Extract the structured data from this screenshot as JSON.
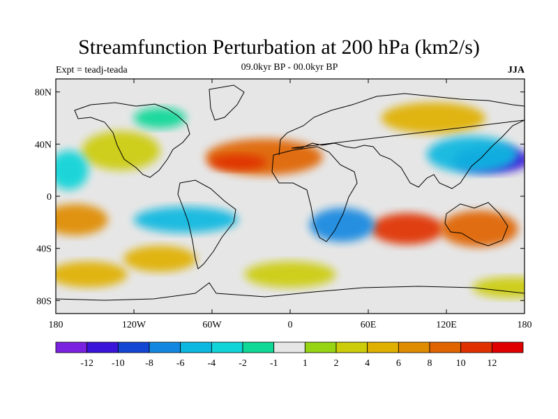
{
  "title": "Streamfunction Perturbation at 200 hPa (km2/s)",
  "left_label": "Expt = teadj-teada",
  "center_label": "09.0kyr BP - 00.0kyr BP",
  "right_label": "JJA",
  "map": {
    "lon_ticks": [
      "180",
      "120W",
      "60W",
      "0",
      "60E",
      "120E",
      "180"
    ],
    "lat_ticks": [
      "80N",
      "40N",
      "0",
      "40S",
      "80S"
    ],
    "lon_values": [
      -180,
      -120,
      -60,
      0,
      60,
      120,
      180
    ],
    "lat_values": [
      80,
      40,
      0,
      -40,
      -80
    ]
  },
  "colorbar": {
    "colors": [
      "#7a22e0",
      "#3a14d8",
      "#1446d4",
      "#1488e0",
      "#0cb8e0",
      "#10d4d8",
      "#10d896",
      "#e6e6e6",
      "#96d414",
      "#cccc0a",
      "#e0b000",
      "#e08c00",
      "#e06400",
      "#e03000",
      "#e00000"
    ],
    "labels": [
      "-12",
      "-10",
      "-8",
      "-6",
      "-4",
      "-2",
      "-1",
      "1",
      "2",
      "4",
      "6",
      "8",
      "10",
      "12"
    ]
  },
  "field_blobs": [
    {
      "lon": -20,
      "lat": 30,
      "rx": 45,
      "ry": 14,
      "level": 12
    },
    {
      "lon": -40,
      "lat": 26,
      "rx": 22,
      "ry": 6,
      "level": 13
    },
    {
      "lon": -130,
      "lat": 35,
      "rx": 30,
      "ry": 15,
      "level": 9
    },
    {
      "lon": -165,
      "lat": -18,
      "rx": 25,
      "ry": 12,
      "level": 11
    },
    {
      "lon": -100,
      "lat": -48,
      "rx": 28,
      "ry": 10,
      "level": 10
    },
    {
      "lon": 90,
      "lat": -25,
      "rx": 28,
      "ry": 12,
      "level": 13
    },
    {
      "lon": 145,
      "lat": -25,
      "rx": 30,
      "ry": 14,
      "level": 12
    },
    {
      "lon": 110,
      "lat": 60,
      "rx": 40,
      "ry": 12,
      "level": 10
    },
    {
      "lon": 155,
      "lat": 28,
      "rx": 30,
      "ry": 10,
      "level": 1
    },
    {
      "lon": 140,
      "lat": 32,
      "rx": 35,
      "ry": 14,
      "level": 4
    },
    {
      "lon": -80,
      "lat": -18,
      "rx": 40,
      "ry": 10,
      "level": 4
    },
    {
      "lon": 40,
      "lat": -22,
      "rx": 25,
      "ry": 13,
      "level": 3
    },
    {
      "lon": -100,
      "lat": 60,
      "rx": 20,
      "ry": 8,
      "level": 6
    },
    {
      "lon": -170,
      "lat": 20,
      "rx": 15,
      "ry": 15,
      "level": 5
    },
    {
      "lon": 0,
      "lat": -60,
      "rx": 35,
      "ry": 10,
      "level": 9
    },
    {
      "lon": -155,
      "lat": -60,
      "rx": 30,
      "ry": 10,
      "level": 10
    },
    {
      "lon": 170,
      "lat": -70,
      "rx": 30,
      "ry": 8,
      "level": 9
    }
  ]
}
